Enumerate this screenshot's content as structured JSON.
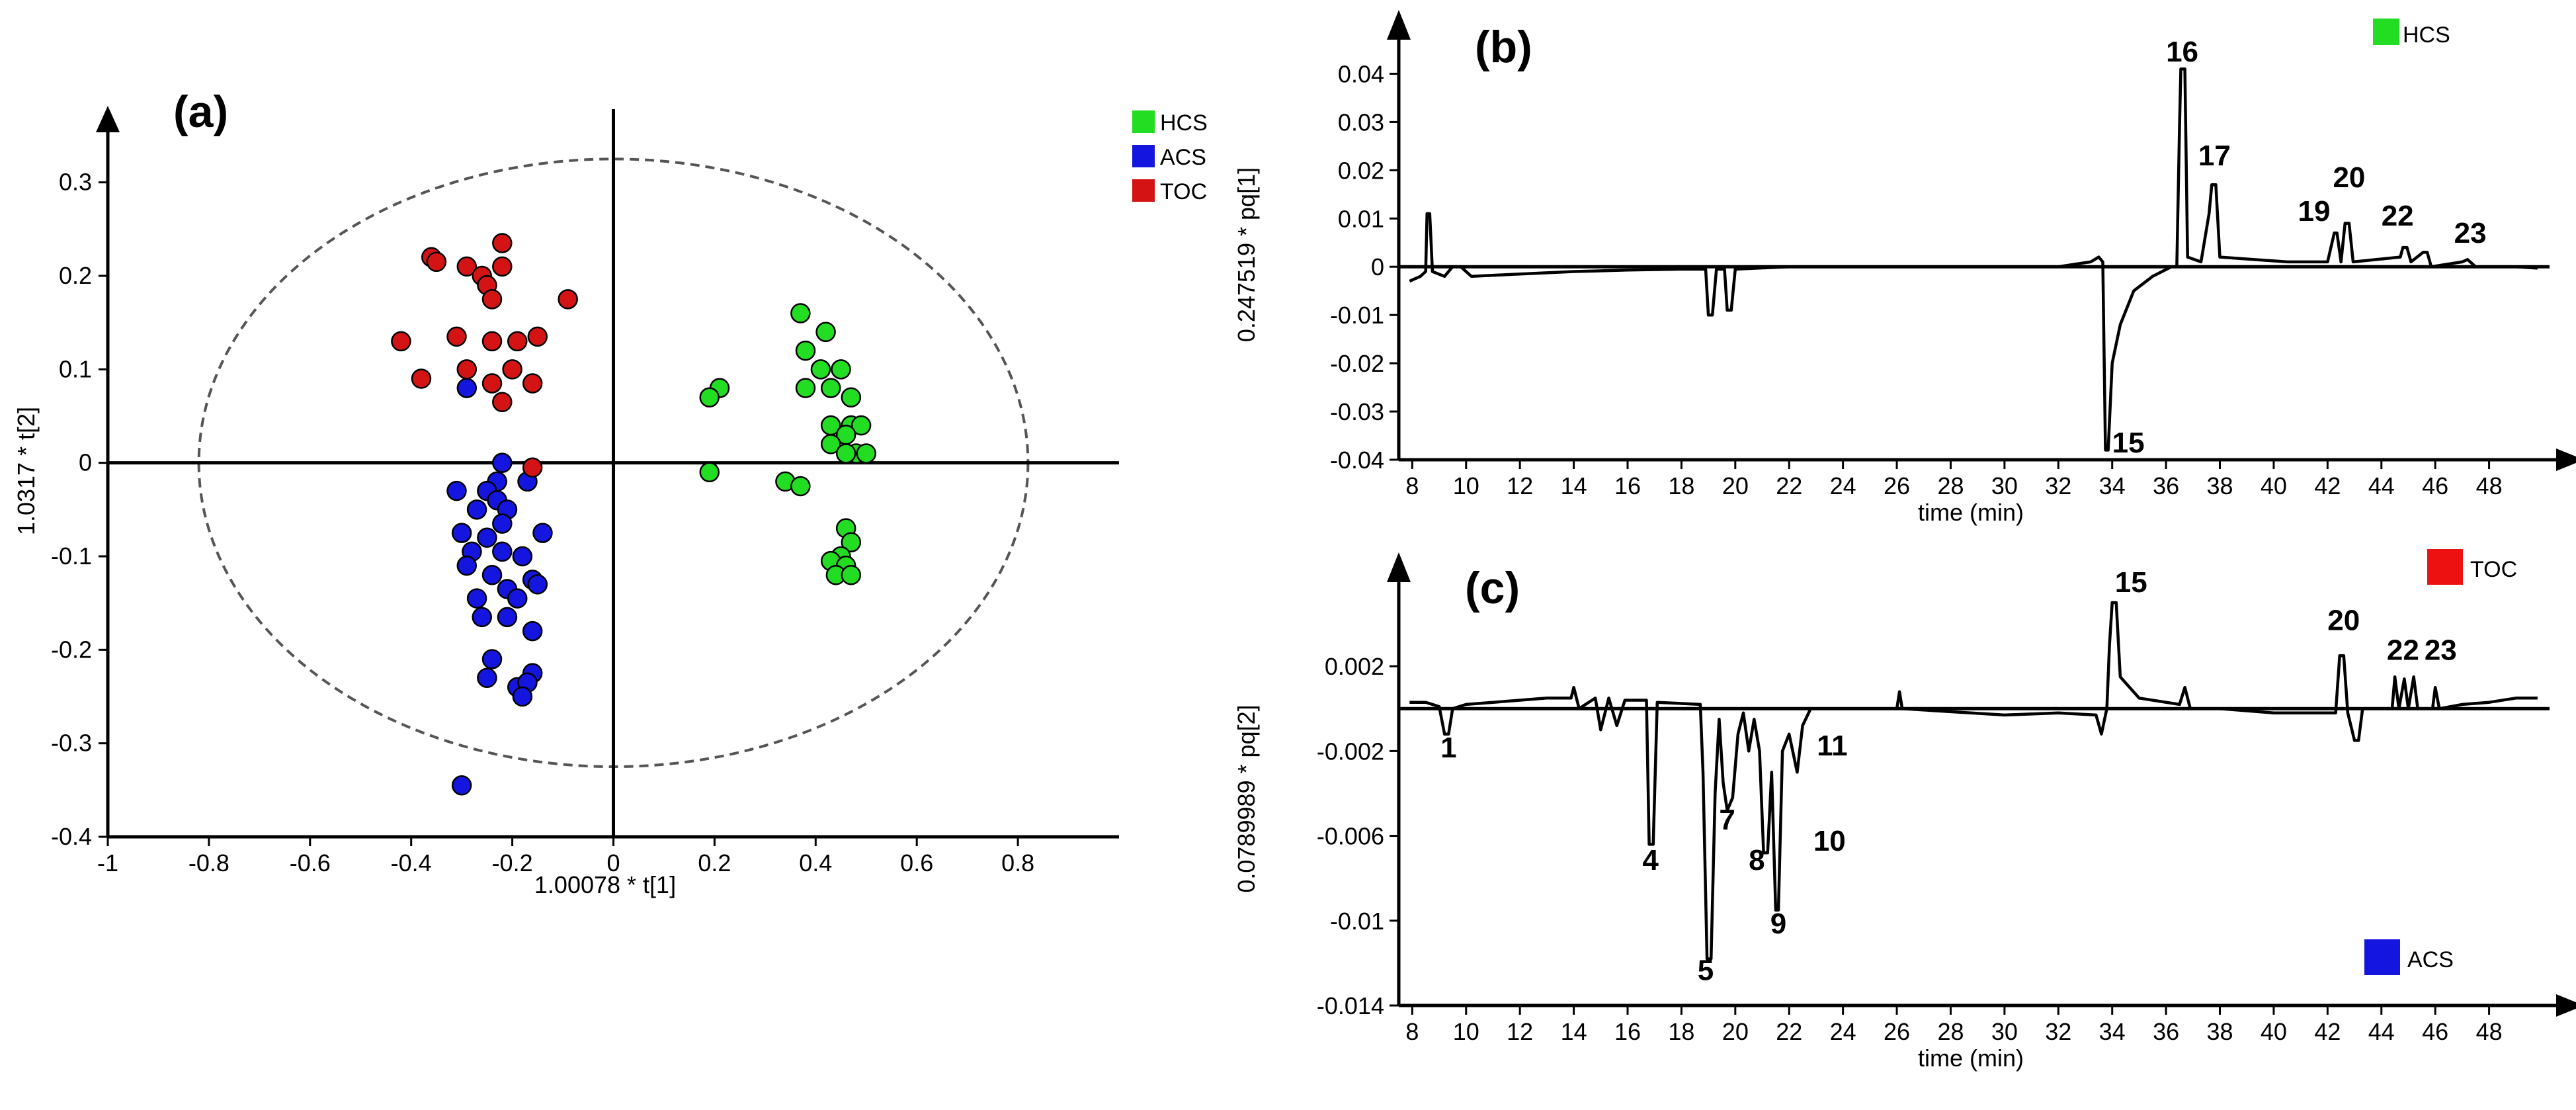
{
  "chart_data": [
    {
      "type": "scatter",
      "panel": "(a)",
      "title": "",
      "xlabel": "1.00078 * t[1]",
      "ylabel": "1.0317 * t[2]",
      "xlim": [
        -1,
        1
      ],
      "ylim": [
        -0.4,
        0.35
      ],
      "xticks": [
        "-1",
        "-0.8",
        "-0.6",
        "-0.4",
        "-0.2",
        "0",
        "0.2",
        "0.4",
        "0.6",
        "0.8"
      ],
      "yticks": [
        "0.3",
        "0.2",
        "0.1",
        "0",
        "-0.1",
        "-0.2",
        "-0.3",
        "-0.4"
      ],
      "ellipse": {
        "cx": 0.0,
        "cy": 0.0,
        "rx": 0.82,
        "ry": 0.325
      },
      "legend": [
        {
          "label": "HCS",
          "color": "#22dd22"
        },
        {
          "label": "ACS",
          "color": "#1515e0"
        },
        {
          "label": "TOC",
          "color": "#d41414"
        }
      ],
      "series": [
        {
          "name": "HCS",
          "color": "#22dd22",
          "points": [
            [
              0.37,
              0.16
            ],
            [
              0.38,
              0.12
            ],
            [
              0.42,
              0.14
            ],
            [
              0.41,
              0.1
            ],
            [
              0.45,
              0.1
            ],
            [
              0.43,
              0.08
            ],
            [
              0.38,
              0.08
            ],
            [
              0.47,
              0.07
            ],
            [
              0.21,
              0.08
            ],
            [
              0.19,
              0.07
            ],
            [
              0.43,
              0.04
            ],
            [
              0.47,
              0.04
            ],
            [
              0.49,
              0.04
            ],
            [
              0.46,
              0.03
            ],
            [
              0.43,
              0.02
            ],
            [
              0.48,
              0.01
            ],
            [
              0.5,
              0.01
            ],
            [
              0.46,
              0.01
            ],
            [
              0.19,
              -0.01
            ],
            [
              0.34,
              -0.02
            ],
            [
              0.37,
              -0.025
            ],
            [
              0.46,
              -0.07
            ],
            [
              0.47,
              -0.085
            ],
            [
              0.45,
              -0.1
            ],
            [
              0.43,
              -0.105
            ],
            [
              0.46,
              -0.11
            ],
            [
              0.44,
              -0.12
            ],
            [
              0.47,
              -0.12
            ]
          ]
        },
        {
          "name": "ACS",
          "color": "#1515e0",
          "points": [
            [
              -0.29,
              0.08
            ],
            [
              -0.22,
              0.0
            ],
            [
              -0.31,
              -0.03
            ],
            [
              -0.23,
              -0.02
            ],
            [
              -0.25,
              -0.03
            ],
            [
              -0.23,
              -0.04
            ],
            [
              -0.17,
              -0.02
            ],
            [
              -0.27,
              -0.05
            ],
            [
              -0.21,
              -0.05
            ],
            [
              -0.22,
              -0.065
            ],
            [
              -0.3,
              -0.075
            ],
            [
              -0.25,
              -0.08
            ],
            [
              -0.14,
              -0.075
            ],
            [
              -0.28,
              -0.095
            ],
            [
              -0.22,
              -0.095
            ],
            [
              -0.18,
              -0.1
            ],
            [
              -0.29,
              -0.11
            ],
            [
              -0.24,
              -0.12
            ],
            [
              -0.16,
              -0.125
            ],
            [
              -0.15,
              -0.13
            ],
            [
              -0.21,
              -0.135
            ],
            [
              -0.27,
              -0.145
            ],
            [
              -0.19,
              -0.145
            ],
            [
              -0.26,
              -0.165
            ],
            [
              -0.21,
              -0.165
            ],
            [
              -0.16,
              -0.18
            ],
            [
              -0.24,
              -0.21
            ],
            [
              -0.16,
              -0.225
            ],
            [
              -0.25,
              -0.23
            ],
            [
              -0.19,
              -0.24
            ],
            [
              -0.17,
              -0.235
            ],
            [
              -0.18,
              -0.25
            ],
            [
              -0.3,
              -0.345
            ]
          ]
        },
        {
          "name": "TOC",
          "color": "#d41414",
          "points": [
            [
              -0.36,
              0.22
            ],
            [
              -0.35,
              0.215
            ],
            [
              -0.29,
              0.21
            ],
            [
              -0.22,
              0.235
            ],
            [
              -0.26,
              0.2
            ],
            [
              -0.22,
              0.21
            ],
            [
              -0.25,
              0.19
            ],
            [
              -0.24,
              0.175
            ],
            [
              -0.09,
              0.175
            ],
            [
              -0.42,
              0.13
            ],
            [
              -0.31,
              0.135
            ],
            [
              -0.24,
              0.13
            ],
            [
              -0.19,
              0.13
            ],
            [
              -0.15,
              0.135
            ],
            [
              -0.29,
              0.1
            ],
            [
              -0.2,
              0.1
            ],
            [
              -0.38,
              0.09
            ],
            [
              -0.24,
              0.085
            ],
            [
              -0.16,
              0.085
            ],
            [
              -0.22,
              0.065
            ],
            [
              -0.16,
              -0.005
            ]
          ]
        }
      ]
    },
    {
      "type": "line",
      "panel": "(b)",
      "xlabel": "time (min)",
      "ylabel": "0.247519 * pq[1]",
      "xlim": [
        7.5,
        50
      ],
      "ylim": [
        -0.04,
        0.045
      ],
      "xticks": [
        "8",
        "10",
        "12",
        "14",
        "16",
        "18",
        "20",
        "22",
        "24",
        "26",
        "28",
        "30",
        "32",
        "34",
        "36",
        "38",
        "40",
        "42",
        "44",
        "46",
        "48"
      ],
      "yticks": [
        "0.04",
        "0.03",
        "0.02",
        "0.01",
        "0",
        "-0.01",
        "-0.02",
        "-0.03",
        "-0.04"
      ],
      "legend": [
        {
          "label": "HCS",
          "color": "#22dd22"
        }
      ],
      "trace": [
        [
          7.9,
          -0.003
        ],
        [
          8.3,
          -0.002
        ],
        [
          8.5,
          -0.001
        ],
        [
          8.55,
          0.011
        ],
        [
          8.65,
          0.011
        ],
        [
          8.75,
          -0.001
        ],
        [
          9.2,
          -0.002
        ],
        [
          9.5,
          0.0
        ],
        [
          9.8,
          0.0
        ],
        [
          10.2,
          -0.002
        ],
        [
          12,
          -0.0015
        ],
        [
          14,
          -0.001
        ],
        [
          16,
          -0.0007
        ],
        [
          18,
          -0.0005
        ],
        [
          18.9,
          -0.0005
        ],
        [
          19.0,
          -0.01
        ],
        [
          19.15,
          -0.01
        ],
        [
          19.3,
          -0.0005
        ],
        [
          19.6,
          -0.0005
        ],
        [
          19.7,
          -0.009
        ],
        [
          19.85,
          -0.009
        ],
        [
          20.0,
          -0.0005
        ],
        [
          22,
          0.0
        ],
        [
          26,
          0.0
        ],
        [
          30,
          0.0
        ],
        [
          32,
          0.0
        ],
        [
          33.2,
          0.001
        ],
        [
          33.5,
          0.002
        ],
        [
          33.65,
          0.001
        ],
        [
          33.75,
          -0.038
        ],
        [
          33.85,
          -0.038
        ],
        [
          34.0,
          -0.02
        ],
        [
          34.3,
          -0.012
        ],
        [
          34.8,
          -0.005
        ],
        [
          35.5,
          -0.002
        ],
        [
          36.2,
          0.0
        ],
        [
          36.4,
          0.0
        ],
        [
          36.5,
          0.029
        ],
        [
          36.55,
          0.041
        ],
        [
          36.7,
          0.041
        ],
        [
          36.8,
          0.002
        ],
        [
          37.3,
          0.001
        ],
        [
          37.6,
          0.011
        ],
        [
          37.7,
          0.017
        ],
        [
          37.85,
          0.017
        ],
        [
          38.0,
          0.002
        ],
        [
          40.5,
          0.001
        ],
        [
          42.0,
          0.001
        ],
        [
          42.25,
          0.007
        ],
        [
          42.35,
          0.007
        ],
        [
          42.5,
          0.001
        ],
        [
          42.65,
          0.009
        ],
        [
          42.8,
          0.009
        ],
        [
          42.95,
          0.001
        ],
        [
          44.7,
          0.002
        ],
        [
          44.8,
          0.004
        ],
        [
          44.95,
          0.004
        ],
        [
          45.1,
          0.001
        ],
        [
          45.55,
          0.003
        ],
        [
          45.7,
          0.003
        ],
        [
          45.85,
          0.0
        ],
        [
          47.0,
          0.001
        ],
        [
          47.2,
          0.0015
        ],
        [
          47.5,
          0.0
        ],
        [
          49.0,
          0.0
        ],
        [
          49.8,
          -0.0003
        ]
      ],
      "peak_labels": [
        {
          "label": "16",
          "x": 36.6,
          "y": 0.0425
        },
        {
          "label": "17",
          "x": 37.8,
          "y": 0.021
        },
        {
          "label": "19",
          "x": 41.5,
          "y": 0.0095
        },
        {
          "label": "20",
          "x": 42.8,
          "y": 0.0165
        },
        {
          "label": "22",
          "x": 44.6,
          "y": 0.0085
        },
        {
          "label": "23",
          "x": 47.3,
          "y": 0.005
        },
        {
          "label": "15",
          "x": 34.6,
          "y": -0.0385
        }
      ]
    },
    {
      "type": "line",
      "panel": "(c)",
      "xlabel": "time (min)",
      "ylabel": "0.0789989 * pq[2]",
      "xlim": [
        7.5,
        50
      ],
      "ylim": [
        -0.014,
        0.0055
      ],
      "xticks": [
        "8",
        "10",
        "12",
        "14",
        "16",
        "18",
        "20",
        "22",
        "24",
        "26",
        "28",
        "30",
        "32",
        "34",
        "36",
        "38",
        "40",
        "42",
        "44",
        "46",
        "48"
      ],
      "yticks": [
        "0.002",
        "-0.002",
        "-0.006",
        "-0.01",
        "-0.014"
      ],
      "legend": [
        {
          "label": "TOC",
          "color": "#ee1111"
        },
        {
          "label": "ACS",
          "color": "#1515e0"
        }
      ],
      "trace": [
        [
          7.9,
          0.0003
        ],
        [
          8.5,
          0.0003
        ],
        [
          9.0,
          0.0001
        ],
        [
          9.2,
          -0.0012
        ],
        [
          9.35,
          -0.0012
        ],
        [
          9.5,
          0.0
        ],
        [
          10.0,
          0.0002
        ],
        [
          11,
          0.0003
        ],
        [
          12,
          0.0004
        ],
        [
          13,
          0.0005
        ],
        [
          13.9,
          0.0005
        ],
        [
          14.0,
          0.001
        ],
        [
          14.2,
          0.0
        ],
        [
          14.8,
          0.0005
        ],
        [
          15.0,
          -0.001
        ],
        [
          15.3,
          0.0005
        ],
        [
          15.6,
          -0.0008
        ],
        [
          15.9,
          0.0004
        ],
        [
          16.7,
          0.0004
        ],
        [
          16.8,
          -0.0064
        ],
        [
          16.95,
          -0.0064
        ],
        [
          17.1,
          0.0003
        ],
        [
          18.7,
          0.0002
        ],
        [
          18.8,
          -0.003
        ],
        [
          18.95,
          -0.0118
        ],
        [
          19.1,
          -0.0118
        ],
        [
          19.25,
          -0.004
        ],
        [
          19.4,
          -0.0005
        ],
        [
          19.55,
          -0.0035
        ],
        [
          19.7,
          -0.0048
        ],
        [
          19.9,
          -0.0042
        ],
        [
          20.1,
          -0.0012
        ],
        [
          20.3,
          -0.0002
        ],
        [
          20.5,
          -0.002
        ],
        [
          20.7,
          -0.0005
        ],
        [
          20.9,
          -0.002
        ],
        [
          21.05,
          -0.0068
        ],
        [
          21.2,
          -0.0068
        ],
        [
          21.35,
          -0.003
        ],
        [
          21.5,
          -0.0095
        ],
        [
          21.6,
          -0.0095
        ],
        [
          21.75,
          -0.002
        ],
        [
          22.0,
          -0.0012
        ],
        [
          22.3,
          -0.003
        ],
        [
          22.5,
          -0.0008
        ],
        [
          22.8,
          0.0
        ],
        [
          24,
          0.0
        ],
        [
          26.0,
          0.0
        ],
        [
          26.1,
          0.0008
        ],
        [
          26.2,
          0.0
        ],
        [
          30,
          -0.0003
        ],
        [
          32,
          -0.0002
        ],
        [
          33.4,
          -0.0003
        ],
        [
          33.6,
          -0.0012
        ],
        [
          33.8,
          0.0
        ],
        [
          33.9,
          0.003
        ],
        [
          34.0,
          0.005
        ],
        [
          34.15,
          0.005
        ],
        [
          34.3,
          0.0015
        ],
        [
          35.0,
          0.0005
        ],
        [
          36.5,
          0.0002
        ],
        [
          36.7,
          0.001
        ],
        [
          36.9,
          0.0
        ],
        [
          38,
          0.0
        ],
        [
          40,
          -0.0002
        ],
        [
          42.3,
          -0.0002
        ],
        [
          42.45,
          0.0025
        ],
        [
          42.6,
          0.0025
        ],
        [
          42.75,
          -0.0002
        ],
        [
          43.0,
          -0.0015
        ],
        [
          43.15,
          -0.0015
        ],
        [
          43.3,
          0.0
        ],
        [
          44.4,
          0.0
        ],
        [
          44.5,
          0.0015
        ],
        [
          44.65,
          0.0
        ],
        [
          44.85,
          0.0014
        ],
        [
          45.0,
          0.0
        ],
        [
          45.2,
          0.0015
        ],
        [
          45.35,
          0.0
        ],
        [
          45.9,
          0.0
        ],
        [
          46.0,
          0.001
        ],
        [
          46.15,
          0.0
        ],
        [
          47,
          0.0002
        ],
        [
          48,
          0.0003
        ],
        [
          49.0,
          0.0005
        ],
        [
          49.8,
          0.0005
        ]
      ],
      "peak_labels": [
        {
          "label": "15",
          "x": 34.7,
          "y": 0.0055
        },
        {
          "label": "20",
          "x": 42.6,
          "y": 0.0037
        },
        {
          "label": "22",
          "x": 44.8,
          "y": 0.0023
        },
        {
          "label": "23",
          "x": 46.2,
          "y": 0.0023
        },
        {
          "label": "1",
          "x": 9.35,
          "y": -0.0023
        },
        {
          "label": "11",
          "x": 23.6,
          "y": -0.0022
        },
        {
          "label": "7",
          "x": 19.7,
          "y": -0.0057
        },
        {
          "label": "10",
          "x": 23.5,
          "y": -0.0067
        },
        {
          "label": "4",
          "x": 16.85,
          "y": -0.0076
        },
        {
          "label": "8",
          "x": 20.8,
          "y": -0.0076
        },
        {
          "label": "9",
          "x": 21.6,
          "y": -0.0106
        },
        {
          "label": "5",
          "x": 18.9,
          "y": -0.0128
        }
      ]
    }
  ],
  "labels": {
    "panel_a": "(a)",
    "panel_b": "(b)",
    "panel_c": "(c)"
  }
}
